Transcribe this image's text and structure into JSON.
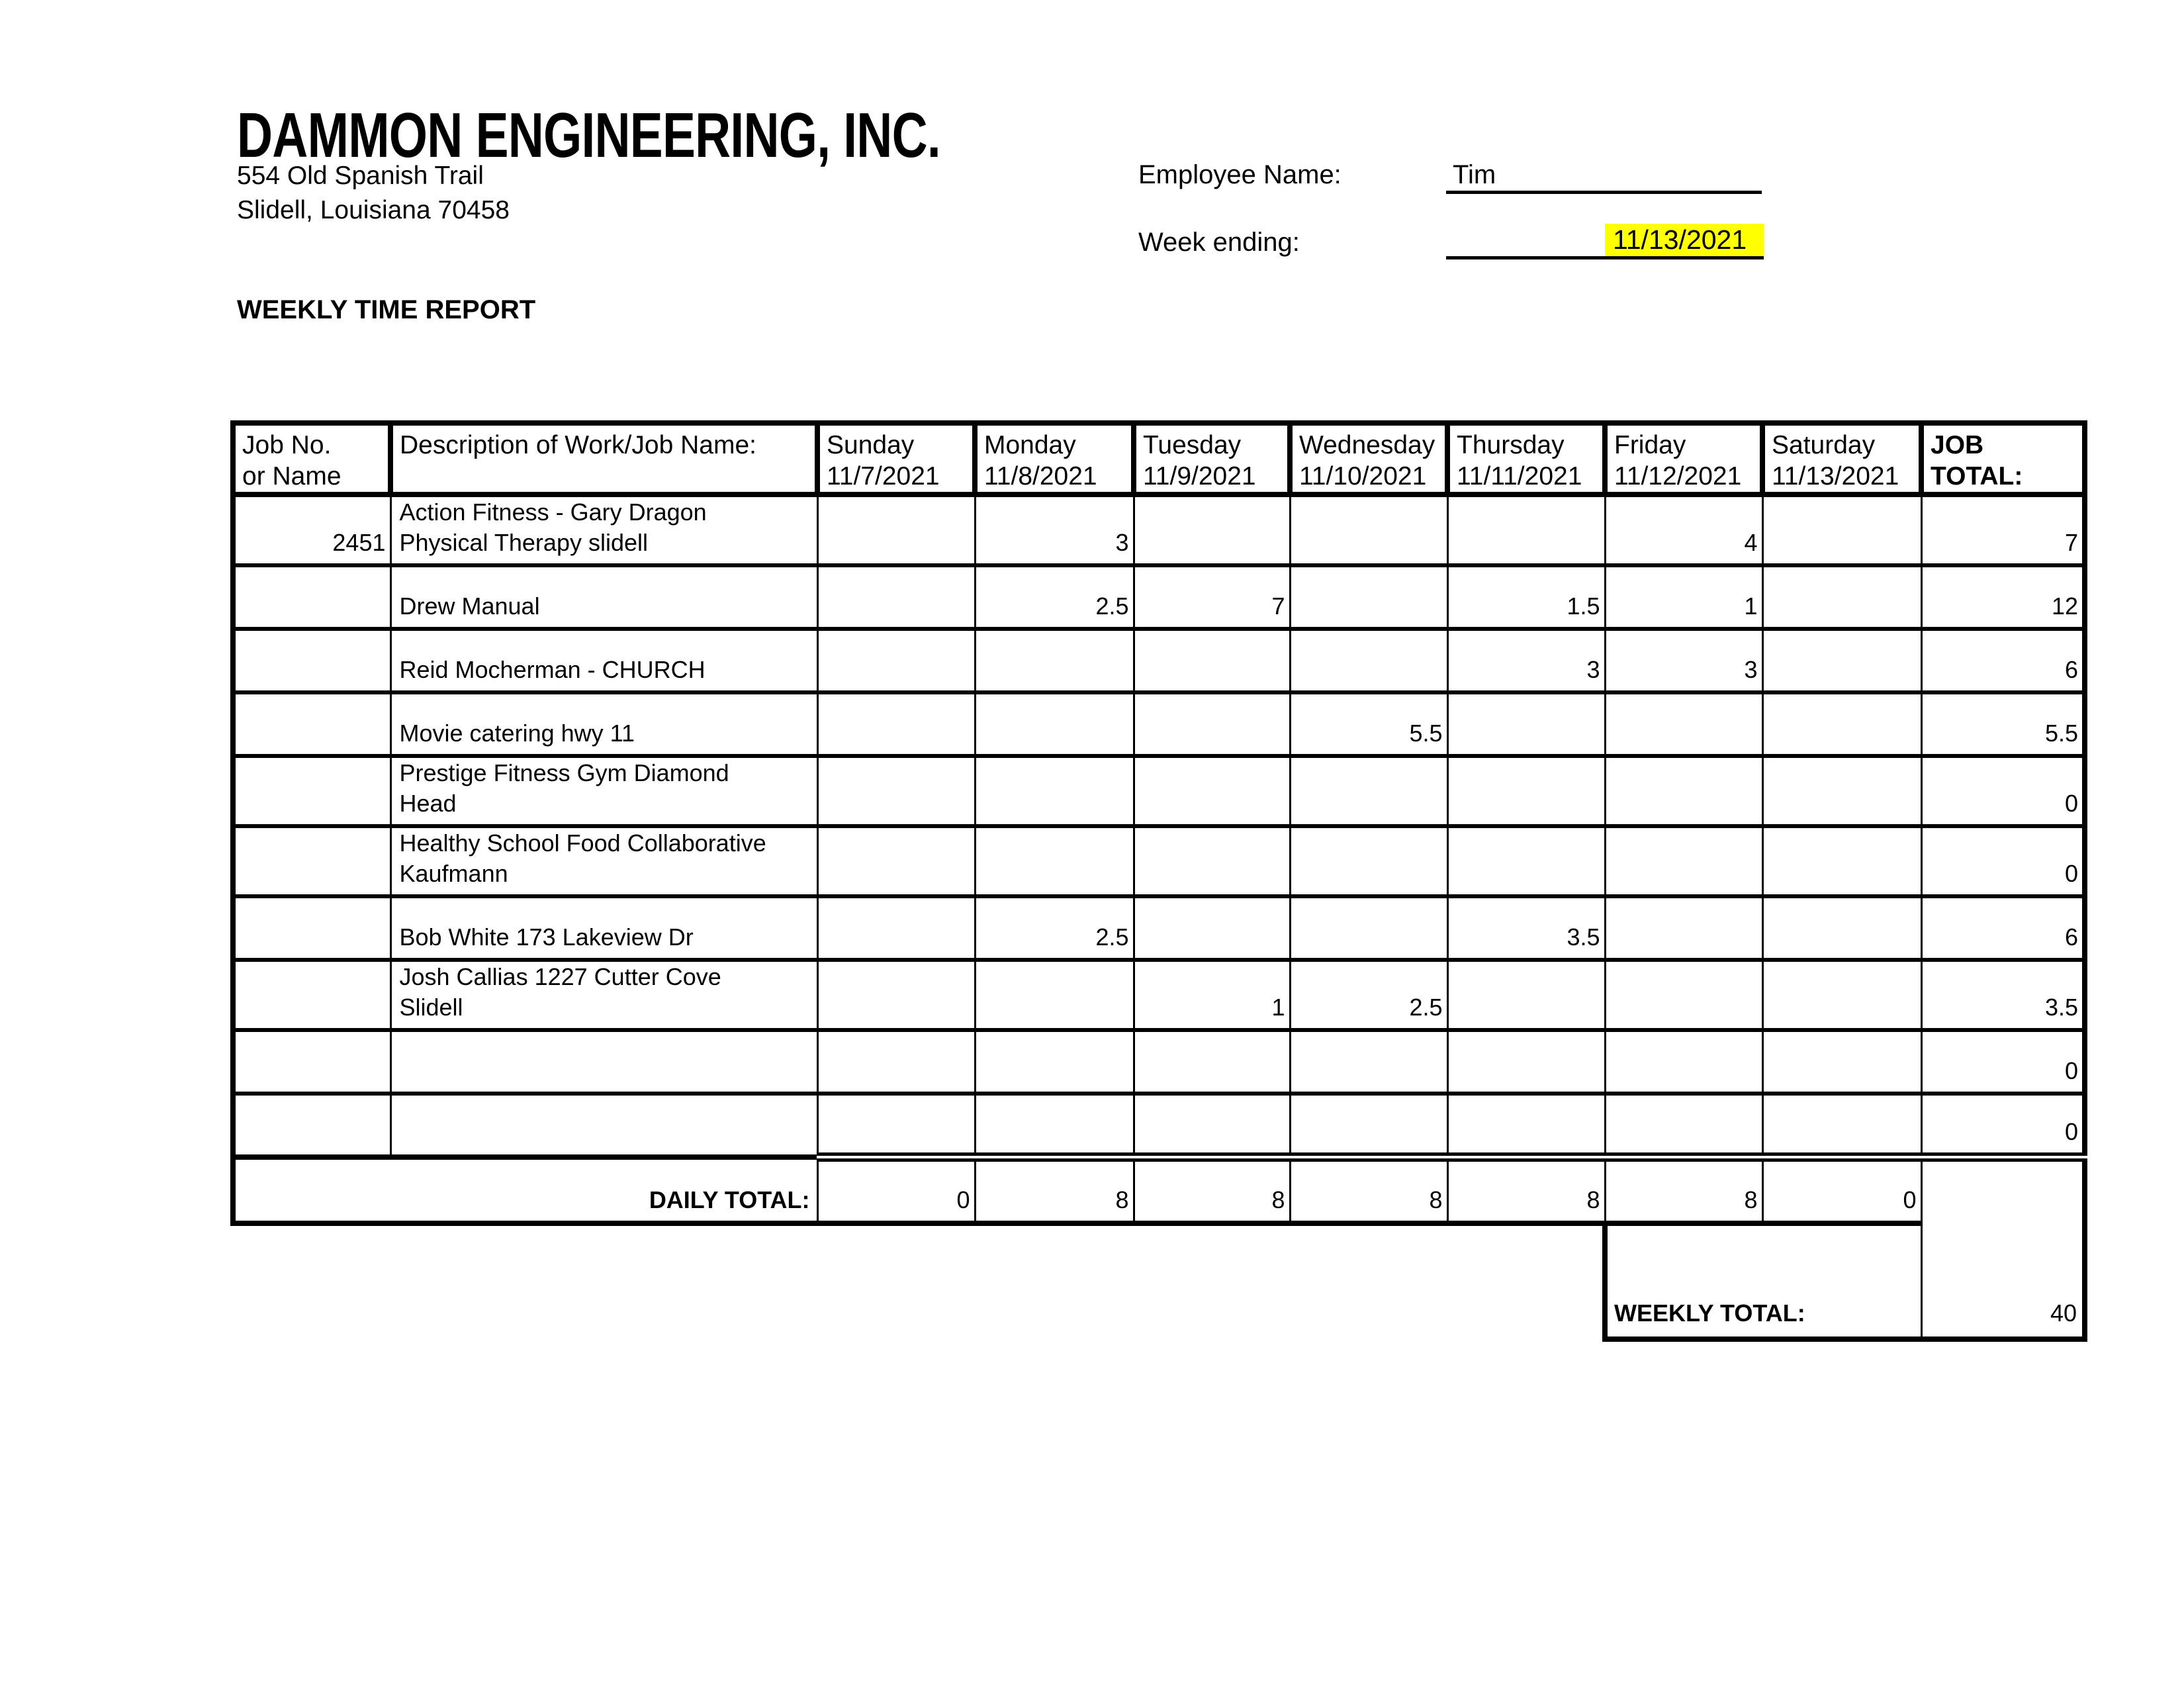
{
  "colors": {
    "highlight": "#ffff00",
    "ink": "#000000",
    "paper": "#ffffff"
  },
  "header": {
    "company_name": "DAMMON ENGINEERING, INC.",
    "address_line1": "554 Old Spanish Trail",
    "address_line2": "Slidell, Louisiana  70458"
  },
  "fields": {
    "employee_label": "Employee Name:",
    "employee_name": "Tim",
    "week_ending_label": "Week ending:",
    "week_ending_value": "11/13/2021"
  },
  "report_title": "WEEKLY TIME REPORT",
  "table": {
    "headers": {
      "job_no_line1": "Job No.",
      "job_no_line2": "or Name",
      "description": "Description of Work/Job Name:",
      "days": [
        {
          "name": "Sunday",
          "date": "11/7/2021"
        },
        {
          "name": "Monday",
          "date": "11/8/2021"
        },
        {
          "name": "Tuesday",
          "date": "11/9/2021"
        },
        {
          "name": "Wednesday",
          "date": "11/10/2021"
        },
        {
          "name": "Thursday",
          "date": "11/11/2021"
        },
        {
          "name": "Friday",
          "date": "11/12/2021"
        },
        {
          "name": "Saturday",
          "date": "11/13/2021"
        }
      ],
      "job_total_line1": "JOB",
      "job_total_line2": "TOTAL:"
    },
    "rows": [
      {
        "job_no": "2451",
        "description": "Action Fitness - Gary Dragon\nPhysical Therapy slidell",
        "hours": [
          "",
          "3",
          "",
          "",
          "",
          "4",
          ""
        ],
        "total": "7"
      },
      {
        "job_no": "",
        "description": "Drew Manual",
        "hours": [
          "",
          "2.5",
          "7",
          "",
          "1.5",
          "1",
          ""
        ],
        "total": "12"
      },
      {
        "job_no": "",
        "description": "Reid Mocherman - CHURCH",
        "hours": [
          "",
          "",
          "",
          "",
          "3",
          "3",
          ""
        ],
        "total": "6"
      },
      {
        "job_no": "",
        "description": "Movie catering hwy 11",
        "hours": [
          "",
          "",
          "",
          "5.5",
          "",
          "",
          ""
        ],
        "total": "5.5"
      },
      {
        "job_no": "",
        "description": "Prestige Fitness Gym Diamond\nHead",
        "hours": [
          "",
          "",
          "",
          "",
          "",
          "",
          ""
        ],
        "total": "0"
      },
      {
        "job_no": "",
        "description": "Healthy School Food Collaborative\nKaufmann",
        "hours": [
          "",
          "",
          "",
          "",
          "",
          "",
          ""
        ],
        "total": "0"
      },
      {
        "job_no": "",
        "description": "Bob White 173 Lakeview Dr",
        "hours": [
          "",
          "2.5",
          "",
          "",
          "3.5",
          "",
          ""
        ],
        "total": "6"
      },
      {
        "job_no": "",
        "description": "Josh Callias 1227 Cutter Cove\nSlidell",
        "hours": [
          "",
          "",
          "1",
          "2.5",
          "",
          "",
          ""
        ],
        "total": "3.5"
      },
      {
        "job_no": "",
        "description": "",
        "hours": [
          "",
          "",
          "",
          "",
          "",
          "",
          ""
        ],
        "total": "0"
      },
      {
        "job_no": "",
        "description": "",
        "hours": [
          "",
          "",
          "",
          "",
          "",
          "",
          ""
        ],
        "total": "0"
      }
    ],
    "daily_total": {
      "label": "DAILY TOTAL:",
      "values": [
        "0",
        "8",
        "8",
        "8",
        "8",
        "8",
        "0"
      ]
    },
    "weekly_total": {
      "label": "WEEKLY TOTAL:",
      "value": "40"
    }
  }
}
